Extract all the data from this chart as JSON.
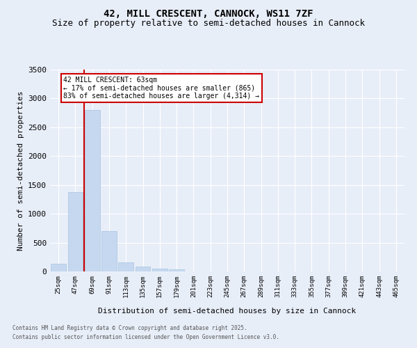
{
  "title1": "42, MILL CRESCENT, CANNOCK, WS11 7ZF",
  "title2": "Size of property relative to semi-detached houses in Cannock",
  "xlabel": "Distribution of semi-detached houses by size in Cannock",
  "ylabel": "Number of semi-detached properties",
  "bar_values": [
    130,
    1380,
    2800,
    700,
    155,
    80,
    50,
    35,
    0,
    0,
    0,
    0,
    0,
    0,
    0,
    0,
    0,
    0,
    0,
    0,
    0
  ],
  "categories": [
    "25sqm",
    "47sqm",
    "69sqm",
    "91sqm",
    "113sqm",
    "135sqm",
    "157sqm",
    "179sqm",
    "201sqm",
    "223sqm",
    "245sqm",
    "267sqm",
    "289sqm",
    "311sqm",
    "333sqm",
    "355sqm",
    "377sqm",
    "399sqm",
    "421sqm",
    "443sqm",
    "465sqm"
  ],
  "bar_color": "#c5d8f0",
  "bar_edge_color": "#a8c4e0",
  "vline_color": "#cc0000",
  "vline_x": 1.5,
  "annotation_title": "42 MILL CRESCENT: 63sqm",
  "annotation_line1": "← 17% of semi-detached houses are smaller (865)",
  "annotation_line2": "83% of semi-detached houses are larger (4,314) →",
  "annotation_box_color": "#ffffff",
  "annotation_box_edge": "#cc0000",
  "ylim": [
    0,
    3500
  ],
  "yticks": [
    0,
    500,
    1000,
    1500,
    2000,
    2500,
    3000,
    3500
  ],
  "footnote1": "Contains HM Land Registry data © Crown copyright and database right 2025.",
  "footnote2": "Contains public sector information licensed under the Open Government Licence v3.0.",
  "bg_color": "#e8eef8",
  "plot_bg_color": "#e8eef8",
  "title_fontsize": 10,
  "subtitle_fontsize": 9,
  "grid_color": "#ffffff"
}
